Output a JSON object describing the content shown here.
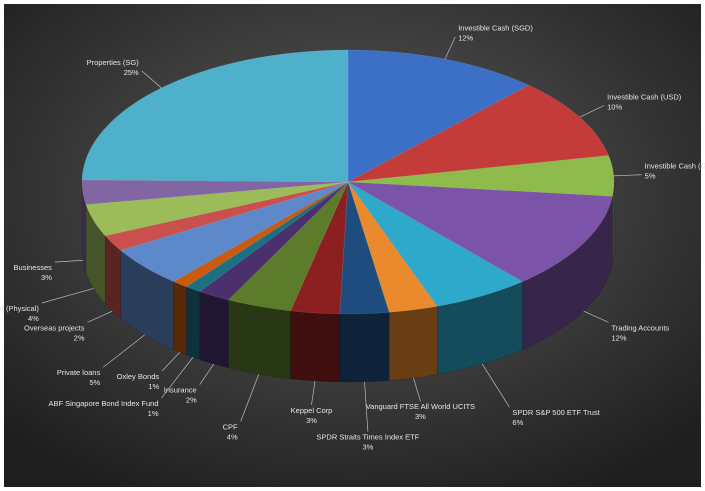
{
  "chart_data": {
    "type": "pie3d",
    "categories": [
      "Investible Cash (SGD)",
      "Investible Cash (USD)",
      "Investible Cash (GBP)",
      "Trading Accounts",
      "SPDR S&P 500 ETF Trust",
      "Vanguard FTSE All World UCITS",
      "SPDR Straits Times Index ETF",
      "Keppel Corp",
      "CPF",
      "Insurance",
      "ABF Singapore Bond Index Fund",
      "Oxley Bonds",
      "Private loans",
      "Overseas projects",
      "Gold (Physical)",
      "Businesses",
      "Properties (SG)"
    ],
    "values": [
      12,
      10,
      5,
      12,
      6,
      3,
      3,
      3,
      4,
      2,
      1,
      1,
      5,
      2,
      4,
      3,
      25
    ],
    "value_labels": [
      "12%",
      "10%",
      "5%",
      "12%",
      "6%",
      "3%",
      "3%",
      "3%",
      "4%",
      "2%",
      "1%",
      "1%",
      "5%",
      "2%",
      "4%",
      "3%",
      "25%"
    ],
    "colors": [
      "#3b70c6",
      "#c43c3a",
      "#8fba4c",
      "#7b53a8",
      "#2fa9cb",
      "#ea8a2c",
      "#1f4c7e",
      "#8c2020",
      "#5c7c2c",
      "#4a306c",
      "#1b7082",
      "#c75b12",
      "#5d88ca",
      "#ca504d",
      "#9cbc5a",
      "#8266a4",
      "#4eb0ca"
    ]
  }
}
